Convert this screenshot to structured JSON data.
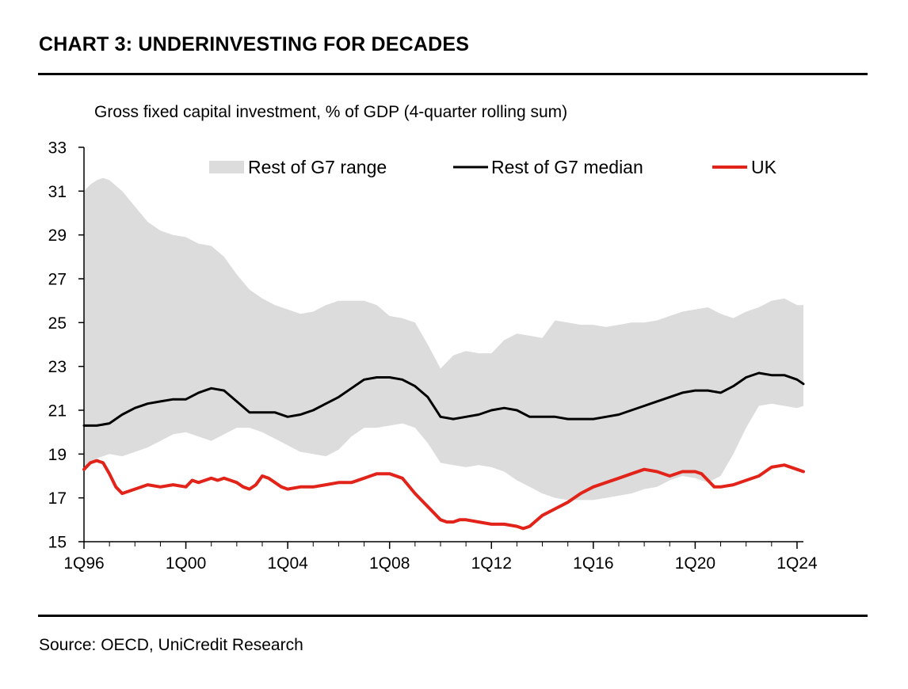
{
  "header": {
    "title": "CHART 3: UNDERINVESTING FOR DECADES"
  },
  "footer": {
    "source": "Source: OECD, UniCredit Research"
  },
  "colors": {
    "range": "#dcdcdc",
    "median": "#000000",
    "uk": "#e2231a"
  },
  "chart_data": {
    "type": "line",
    "title": "CHART 3: UNDERINVESTING FOR DECADES",
    "subtitle": "Gross fixed capital investment, % of GDP (4-quarter rolling sum)",
    "xlabel": "",
    "ylabel": "",
    "ylim": [
      15,
      33
    ],
    "yticks": [
      15,
      17,
      19,
      21,
      23,
      25,
      27,
      29,
      31,
      33
    ],
    "xlim": [
      1996.0,
      2024.25
    ],
    "xticks": [
      {
        "x": 1996,
        "label": "1Q96"
      },
      {
        "x": 2000,
        "label": "1Q00"
      },
      {
        "x": 2004,
        "label": "1Q04"
      },
      {
        "x": 2008,
        "label": "1Q08"
      },
      {
        "x": 2012,
        "label": "1Q12"
      },
      {
        "x": 2016,
        "label": "1Q16"
      },
      {
        "x": 2020,
        "label": "1Q20"
      },
      {
        "x": 2024,
        "label": "1Q24"
      }
    ],
    "grid": false,
    "legend_position": "top",
    "legend": [
      {
        "key": "range",
        "label": "Rest of G7 range"
      },
      {
        "key": "median",
        "label": "Rest of G7 median"
      },
      {
        "key": "uk",
        "label": "UK"
      }
    ],
    "series": [
      {
        "name": "Rest of G7 range",
        "kind": "band",
        "x": [
          1996.0,
          1996.25,
          1996.5,
          1996.75,
          1997.0,
          1997.5,
          1998.0,
          1998.5,
          1999.0,
          1999.5,
          2000.0,
          2000.5,
          2001.0,
          2001.5,
          2002.0,
          2002.5,
          2003.0,
          2003.5,
          2004.0,
          2004.5,
          2005.0,
          2005.5,
          2006.0,
          2006.5,
          2007.0,
          2007.5,
          2008.0,
          2008.5,
          2009.0,
          2009.5,
          2010.0,
          2010.5,
          2011.0,
          2011.5,
          2012.0,
          2012.5,
          2013.0,
          2013.5,
          2014.0,
          2014.5,
          2015.0,
          2015.5,
          2016.0,
          2016.5,
          2017.0,
          2017.5,
          2018.0,
          2018.5,
          2019.0,
          2019.5,
          2020.0,
          2020.5,
          2021.0,
          2021.5,
          2022.0,
          2022.5,
          2023.0,
          2023.5,
          2024.0,
          2024.25
        ],
        "upper": [
          31.0,
          31.3,
          31.5,
          31.6,
          31.5,
          31.0,
          30.3,
          29.6,
          29.2,
          29.0,
          28.9,
          28.6,
          28.5,
          28.0,
          27.2,
          26.5,
          26.1,
          25.8,
          25.6,
          25.4,
          25.5,
          25.8,
          26.0,
          26.0,
          26.0,
          25.8,
          25.3,
          25.2,
          25.0,
          24.0,
          22.9,
          23.5,
          23.7,
          23.6,
          23.6,
          24.2,
          24.5,
          24.4,
          24.3,
          25.1,
          25.0,
          24.9,
          24.9,
          24.8,
          24.9,
          25.0,
          25.0,
          25.1,
          25.3,
          25.5,
          25.6,
          25.7,
          25.4,
          25.2,
          25.5,
          25.7,
          26.0,
          26.1,
          25.8,
          25.8
        ],
        "lower": [
          18.2,
          18.5,
          18.8,
          18.9,
          19.0,
          18.9,
          19.1,
          19.3,
          19.6,
          19.9,
          20.0,
          19.8,
          19.6,
          19.9,
          20.2,
          20.2,
          20.0,
          19.7,
          19.4,
          19.1,
          19.0,
          18.9,
          19.2,
          19.8,
          20.2,
          20.2,
          20.3,
          20.4,
          20.2,
          19.5,
          18.6,
          18.5,
          18.4,
          18.5,
          18.4,
          18.2,
          17.8,
          17.5,
          17.2,
          17.0,
          16.9,
          16.9,
          16.9,
          17.0,
          17.1,
          17.2,
          17.4,
          17.5,
          17.8,
          18.0,
          17.9,
          17.7,
          18.0,
          19.0,
          20.2,
          21.2,
          21.3,
          21.2,
          21.1,
          21.2
        ]
      },
      {
        "name": "Rest of G7 median",
        "kind": "line",
        "x": [
          1996.0,
          1996.5,
          1997.0,
          1997.5,
          1998.0,
          1998.5,
          1999.0,
          1999.5,
          2000.0,
          2000.5,
          2001.0,
          2001.5,
          2002.0,
          2002.5,
          2003.0,
          2003.5,
          2004.0,
          2004.5,
          2005.0,
          2005.5,
          2006.0,
          2006.5,
          2007.0,
          2007.5,
          2008.0,
          2008.5,
          2009.0,
          2009.5,
          2010.0,
          2010.5,
          2011.0,
          2011.5,
          2012.0,
          2012.5,
          2013.0,
          2013.5,
          2014.0,
          2014.5,
          2015.0,
          2015.5,
          2016.0,
          2016.5,
          2017.0,
          2017.5,
          2018.0,
          2018.5,
          2019.0,
          2019.5,
          2020.0,
          2020.5,
          2021.0,
          2021.5,
          2022.0,
          2022.5,
          2023.0,
          2023.5,
          2024.0,
          2024.25
        ],
        "values": [
          20.3,
          20.3,
          20.4,
          20.8,
          21.1,
          21.3,
          21.4,
          21.5,
          21.5,
          21.8,
          22.0,
          21.9,
          21.4,
          20.9,
          20.9,
          20.9,
          20.7,
          20.8,
          21.0,
          21.3,
          21.6,
          22.0,
          22.4,
          22.5,
          22.5,
          22.4,
          22.1,
          21.6,
          20.7,
          20.6,
          20.7,
          20.8,
          21.0,
          21.1,
          21.0,
          20.7,
          20.7,
          20.7,
          20.6,
          20.6,
          20.6,
          20.7,
          20.8,
          21.0,
          21.2,
          21.4,
          21.6,
          21.8,
          21.9,
          21.9,
          21.8,
          22.1,
          22.5,
          22.7,
          22.6,
          22.6,
          22.4,
          22.2
        ]
      },
      {
        "name": "UK",
        "kind": "line",
        "x": [
          1996.0,
          1996.25,
          1996.5,
          1996.75,
          1997.0,
          1997.25,
          1997.5,
          1997.75,
          1998.0,
          1998.5,
          1999.0,
          1999.5,
          2000.0,
          2000.25,
          2000.5,
          2000.75,
          2001.0,
          2001.25,
          2001.5,
          2001.75,
          2002.0,
          2002.25,
          2002.5,
          2002.75,
          2003.0,
          2003.25,
          2003.5,
          2003.75,
          2004.0,
          2004.5,
          2005.0,
          2005.5,
          2006.0,
          2006.5,
          2007.0,
          2007.25,
          2007.5,
          2007.75,
          2008.0,
          2008.5,
          2009.0,
          2009.5,
          2010.0,
          2010.25,
          2010.5,
          2010.75,
          2011.0,
          2011.5,
          2012.0,
          2012.5,
          2013.0,
          2013.25,
          2013.5,
          2014.0,
          2014.5,
          2015.0,
          2015.5,
          2016.0,
          2016.5,
          2017.0,
          2017.5,
          2018.0,
          2018.5,
          2019.0,
          2019.5,
          2020.0,
          2020.25,
          2020.5,
          2020.75,
          2021.0,
          2021.5,
          2022.0,
          2022.5,
          2023.0,
          2023.5,
          2024.0,
          2024.25
        ],
        "values": [
          18.3,
          18.6,
          18.7,
          18.6,
          18.1,
          17.5,
          17.2,
          17.3,
          17.4,
          17.6,
          17.5,
          17.6,
          17.5,
          17.8,
          17.7,
          17.8,
          17.9,
          17.8,
          17.9,
          17.8,
          17.7,
          17.5,
          17.4,
          17.6,
          18.0,
          17.9,
          17.7,
          17.5,
          17.4,
          17.5,
          17.5,
          17.6,
          17.7,
          17.7,
          17.9,
          18.0,
          18.1,
          18.1,
          18.1,
          17.9,
          17.2,
          16.6,
          16.0,
          15.9,
          15.9,
          16.0,
          16.0,
          15.9,
          15.8,
          15.8,
          15.7,
          15.6,
          15.7,
          16.2,
          16.5,
          16.8,
          17.2,
          17.5,
          17.7,
          17.9,
          18.1,
          18.3,
          18.2,
          18.0,
          18.2,
          18.2,
          18.1,
          17.8,
          17.5,
          17.5,
          17.6,
          17.8,
          18.0,
          18.4,
          18.5,
          18.3,
          18.2
        ]
      }
    ]
  }
}
